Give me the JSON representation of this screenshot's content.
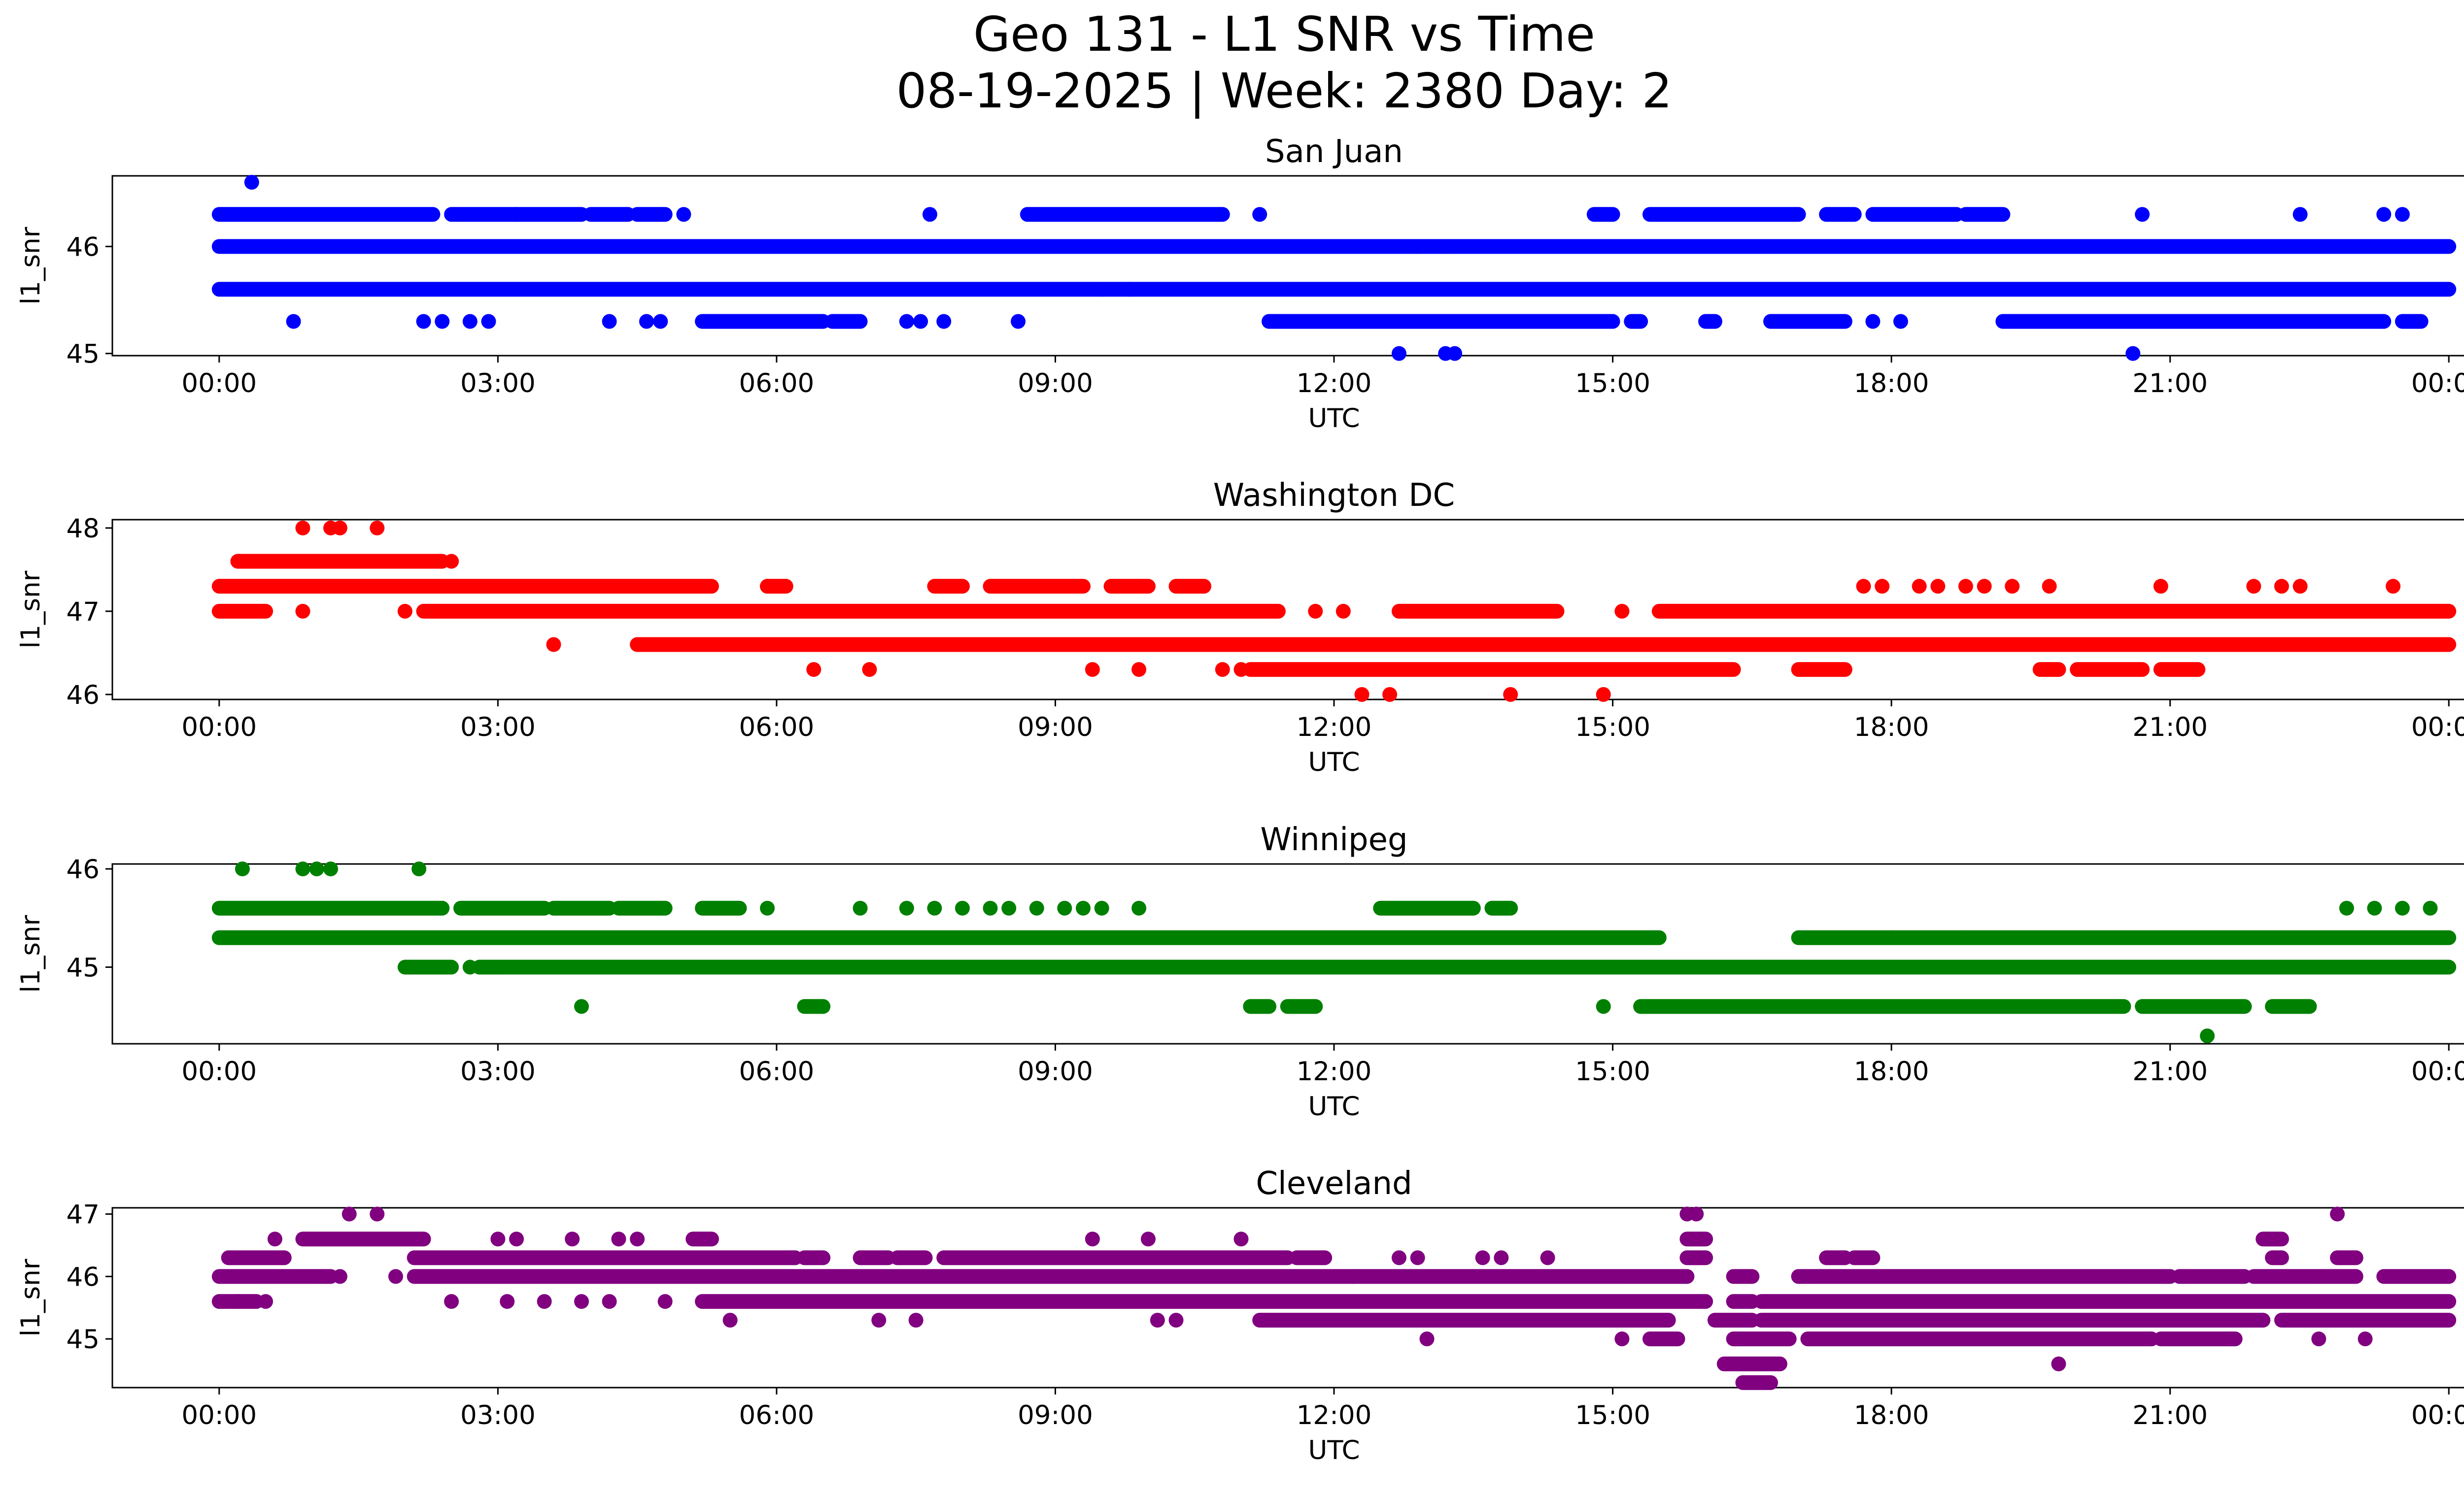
{
  "figure": {
    "title_line1": "Geo 131 - L1 SNR vs Time",
    "title_line2": "08-19-2025 | Week: 2380 Day: 2"
  },
  "chart_data": [
    {
      "type": "scatter",
      "title": "San Juan",
      "xlabel": "UTC",
      "ylabel": "l1_snr",
      "color": "#0000ff",
      "xlim_hours": [
        -1.15,
        25.15
      ],
      "ylim": [
        44.98,
        46.66
      ],
      "yticks": [
        45,
        46
      ],
      "xticks_hours": [
        0,
        3,
        6,
        9,
        12,
        15,
        18,
        21,
        24
      ],
      "xtick_labels": [
        "00:00",
        "03:00",
        "06:00",
        "09:00",
        "12:00",
        "15:00",
        "18:00",
        "21:00",
        "00:00"
      ],
      "bands": [
        {
          "y": 46.0,
          "segments": [
            [
              0.0,
              24.0
            ]
          ]
        },
        {
          "y": 45.6,
          "segments": [
            [
              0.0,
              24.0
            ]
          ]
        },
        {
          "y": 46.3,
          "segments": [
            [
              0.0,
              2.3
            ],
            [
              2.5,
              3.2
            ],
            [
              3.2,
              3.9
            ],
            [
              4.0,
              4.4
            ],
            [
              4.5,
              4.8
            ],
            [
              8.7,
              10.8
            ],
            [
              14.8,
              15.0
            ],
            [
              15.4,
              17.0
            ],
            [
              17.3,
              17.6
            ],
            [
              17.8,
              18.7
            ],
            [
              18.8,
              19.2
            ]
          ]
        },
        {
          "y": 45.3,
          "segments": [
            [
              5.2,
              6.5
            ],
            [
              6.6,
              6.9
            ],
            [
              11.3,
              15.0
            ],
            [
              15.2,
              15.3
            ],
            [
              16.0,
              16.1
            ],
            [
              16.7,
              17.5
            ],
            [
              19.2,
              23.3
            ],
            [
              23.5,
              23.7
            ]
          ]
        }
      ],
      "points": [
        [
          0.35,
          46.6
        ],
        [
          0.8,
          45.3
        ],
        [
          2.2,
          45.3
        ],
        [
          2.4,
          45.3
        ],
        [
          2.7,
          45.3
        ],
        [
          2.9,
          45.3
        ],
        [
          4.2,
          45.3
        ],
        [
          4.6,
          45.3
        ],
        [
          4.75,
          45.3
        ],
        [
          5.0,
          46.3
        ],
        [
          7.4,
          45.3
        ],
        [
          7.55,
          45.3
        ],
        [
          7.65,
          46.3
        ],
        [
          7.8,
          45.3
        ],
        [
          8.6,
          45.3
        ],
        [
          9.5,
          45.6
        ],
        [
          9.8,
          45.6
        ],
        [
          11.2,
          46.3
        ],
        [
          12.7,
          45.0
        ],
        [
          12.9,
          46.0
        ],
        [
          13.2,
          46.0
        ],
        [
          13.2,
          45.0
        ],
        [
          13.3,
          45.0
        ],
        [
          17.8,
          45.3
        ],
        [
          18.1,
          45.3
        ],
        [
          20.6,
          45.0
        ],
        [
          20.7,
          46.3
        ],
        [
          22.4,
          46.3
        ],
        [
          23.3,
          46.3
        ],
        [
          23.5,
          46.3
        ]
      ]
    },
    {
      "type": "scatter",
      "title": "Washington DC",
      "xlabel": "UTC",
      "ylabel": "l1_snr",
      "color": "#ff0000",
      "xlim_hours": [
        -1.15,
        25.15
      ],
      "ylim": [
        45.94,
        48.1
      ],
      "yticks": [
        46,
        47,
        48
      ],
      "xticks_hours": [
        0,
        3,
        6,
        9,
        12,
        15,
        18,
        21,
        24
      ],
      "xtick_labels": [
        "00:00",
        "03:00",
        "06:00",
        "09:00",
        "12:00",
        "15:00",
        "18:00",
        "21:00",
        "00:00"
      ],
      "bands": [
        {
          "y": 47.3,
          "segments": [
            [
              0.0,
              5.3
            ],
            [
              5.9,
              6.1
            ],
            [
              7.7,
              8.0
            ],
            [
              8.3,
              9.3
            ],
            [
              9.6,
              10.0
            ],
            [
              10.3,
              10.6
            ]
          ]
        },
        {
          "y": 47.0,
          "segments": [
            [
              0.0,
              0.5
            ],
            [
              2.2,
              11.4
            ],
            [
              12.7,
              14.4
            ],
            [
              15.5,
              24.0
            ]
          ]
        },
        {
          "y": 46.6,
          "segments": [
            [
              4.5,
              24.0
            ]
          ]
        },
        {
          "y": 47.6,
          "segments": [
            [
              0.2,
              2.4
            ]
          ]
        },
        {
          "y": 46.3,
          "segments": [
            [
              11.1,
              16.3
            ],
            [
              17.0,
              17.5
            ],
            [
              19.6,
              19.8
            ],
            [
              20.0,
              20.7
            ],
            [
              20.9,
              21.3
            ]
          ]
        }
      ],
      "points": [
        [
          0.9,
          48.0
        ],
        [
          1.2,
          48.0
        ],
        [
          1.3,
          48.0
        ],
        [
          1.7,
          48.0
        ],
        [
          0.9,
          47.0
        ],
        [
          2.0,
          47.0
        ],
        [
          2.5,
          47.6
        ],
        [
          3.6,
          46.6
        ],
        [
          5.9,
          47.3
        ],
        [
          6.4,
          46.3
        ],
        [
          7.0,
          46.3
        ],
        [
          9.4,
          46.3
        ],
        [
          9.9,
          46.3
        ],
        [
          10.8,
          46.3
        ],
        [
          11.0,
          46.3
        ],
        [
          11.8,
          47.0
        ],
        [
          12.1,
          47.0
        ],
        [
          12.3,
          46.0
        ],
        [
          12.6,
          46.0
        ],
        [
          13.9,
          46.0
        ],
        [
          14.9,
          46.0
        ],
        [
          15.1,
          47.0
        ],
        [
          17.7,
          47.3
        ],
        [
          17.9,
          47.3
        ],
        [
          18.3,
          47.3
        ],
        [
          18.5,
          47.3
        ],
        [
          18.8,
          47.3
        ],
        [
          19.0,
          47.3
        ],
        [
          19.3,
          47.3
        ],
        [
          19.7,
          47.3
        ],
        [
          20.9,
          47.3
        ],
        [
          21.9,
          47.3
        ],
        [
          22.2,
          47.3
        ],
        [
          22.4,
          47.3
        ],
        [
          23.4,
          47.3
        ]
      ]
    },
    {
      "type": "scatter",
      "title": "Winnipeg",
      "xlabel": "UTC",
      "ylabel": "l1_snr",
      "color": "#008000",
      "xlim_hours": [
        -1.15,
        25.15
      ],
      "ylim": [
        44.22,
        46.05
      ],
      "yticks": [
        45,
        46
      ],
      "xticks_hours": [
        0,
        3,
        6,
        9,
        12,
        15,
        18,
        21,
        24
      ],
      "xtick_labels": [
        "00:00",
        "03:00",
        "06:00",
        "09:00",
        "12:00",
        "15:00",
        "18:00",
        "21:00",
        "00:00"
      ],
      "bands": [
        {
          "y": 45.3,
          "segments": [
            [
              0.0,
              15.5
            ],
            [
              17.0,
              24.0
            ]
          ]
        },
        {
          "y": 45.6,
          "segments": [
            [
              0.0,
              2.4
            ],
            [
              2.6,
              3.5
            ],
            [
              3.6,
              4.2
            ],
            [
              4.3,
              4.8
            ],
            [
              5.2,
              5.6
            ],
            [
              12.5,
              13.5
            ],
            [
              13.7,
              13.9
            ]
          ]
        },
        {
          "y": 45.0,
          "segments": [
            [
              2.0,
              2.5
            ],
            [
              2.8,
              24.0
            ]
          ]
        },
        {
          "y": 44.6,
          "segments": [
            [
              6.3,
              6.5
            ],
            [
              11.1,
              11.3
            ],
            [
              11.5,
              11.8
            ],
            [
              15.3,
              20.5
            ],
            [
              20.7,
              21.8
            ],
            [
              22.1,
              22.5
            ]
          ]
        }
      ],
      "points": [
        [
          0.25,
          46.0
        ],
        [
          0.9,
          46.0
        ],
        [
          1.05,
          46.0
        ],
        [
          1.2,
          46.0
        ],
        [
          2.15,
          46.0
        ],
        [
          2.7,
          45.0
        ],
        [
          3.9,
          44.6
        ],
        [
          5.9,
          45.6
        ],
        [
          6.9,
          45.6
        ],
        [
          7.4,
          45.6
        ],
        [
          7.7,
          45.6
        ],
        [
          8.0,
          45.6
        ],
        [
          8.3,
          45.6
        ],
        [
          8.5,
          45.6
        ],
        [
          8.8,
          45.6
        ],
        [
          9.1,
          45.6
        ],
        [
          9.3,
          45.6
        ],
        [
          9.5,
          45.6
        ],
        [
          9.9,
          45.6
        ],
        [
          14.9,
          44.6
        ],
        [
          18.0,
          45.3
        ],
        [
          18.8,
          45.3
        ],
        [
          21.4,
          44.3
        ],
        [
          22.9,
          45.6
        ],
        [
          23.2,
          45.6
        ],
        [
          23.5,
          45.6
        ],
        [
          23.8,
          45.6
        ]
      ]
    },
    {
      "type": "scatter",
      "title": "Cleveland",
      "xlabel": "UTC",
      "ylabel": "l1_snr",
      "color": "#800080",
      "xlim_hours": [
        -1.15,
        25.15
      ],
      "ylim": [
        44.22,
        47.1
      ],
      "yticks": [
        45,
        46,
        47
      ],
      "xticks_hours": [
        0,
        3,
        6,
        9,
        12,
        15,
        18,
        21,
        24
      ],
      "xtick_labels": [
        "00:00",
        "03:00",
        "06:00",
        "09:00",
        "12:00",
        "15:00",
        "18:00",
        "21:00",
        "00:00"
      ],
      "bands": [
        {
          "y": 46.3,
          "segments": [
            [
              0.1,
              0.7
            ],
            [
              2.1,
              6.2
            ],
            [
              6.3,
              6.5
            ],
            [
              6.9,
              7.2
            ],
            [
              7.3,
              7.6
            ],
            [
              7.8,
              11.5
            ],
            [
              11.6,
              11.9
            ],
            [
              15.8,
              16.0
            ],
            [
              17.3,
              17.5
            ],
            [
              17.6,
              17.8
            ],
            [
              22.1,
              22.2
            ],
            [
              22.8,
              23.0
            ]
          ]
        },
        {
          "y": 46.0,
          "segments": [
            [
              0.0,
              1.2
            ],
            [
              2.1,
              15.8
            ],
            [
              16.3,
              16.5
            ],
            [
              17.0,
              21.0
            ],
            [
              21.1,
              21.8
            ],
            [
              21.9,
              23.0
            ],
            [
              23.3,
              24.0
            ]
          ]
        },
        {
          "y": 45.6,
          "segments": [
            [
              0.0,
              0.4
            ],
            [
              5.2,
              16.0
            ],
            [
              16.3,
              16.5
            ],
            [
              16.6,
              24.0
            ]
          ]
        },
        {
          "y": 46.6,
          "segments": [
            [
              0.9,
              2.2
            ],
            [
              5.1,
              5.3
            ],
            [
              15.8,
              16.0
            ],
            [
              22.0,
              22.2
            ]
          ]
        },
        {
          "y": 45.3,
          "segments": [
            [
              11.2,
              15.6
            ],
            [
              16.1,
              16.5
            ],
            [
              16.6,
              22.0
            ],
            [
              22.2,
              24.0
            ]
          ]
        },
        {
          "y": 45.0,
          "segments": [
            [
              15.4,
              15.7
            ],
            [
              16.3,
              16.9
            ],
            [
              17.1,
              20.8
            ],
            [
              20.9,
              21.7
            ]
          ]
        },
        {
          "y": 44.6,
          "segments": [
            [
              16.2,
              16.8
            ]
          ]
        },
        {
          "y": 44.3,
          "segments": [
            [
              16.4,
              16.7
            ]
          ]
        }
      ],
      "points": [
        [
          0.2,
          45.6
        ],
        [
          0.5,
          45.6
        ],
        [
          0.6,
          46.6
        ],
        [
          1.4,
          47.0
        ],
        [
          1.7,
          47.0
        ],
        [
          1.3,
          46.0
        ],
        [
          1.9,
          46.0
        ],
        [
          2.5,
          45.6
        ],
        [
          3.0,
          46.6
        ],
        [
          3.2,
          46.6
        ],
        [
          3.1,
          45.6
        ],
        [
          3.5,
          45.6
        ],
        [
          3.9,
          45.6
        ],
        [
          4.2,
          45.6
        ],
        [
          3.8,
          46.6
        ],
        [
          4.3,
          46.6
        ],
        [
          4.5,
          46.6
        ],
        [
          4.8,
          45.6
        ],
        [
          5.5,
          45.3
        ],
        [
          7.1,
          45.3
        ],
        [
          7.5,
          45.3
        ],
        [
          9.4,
          46.6
        ],
        [
          10.0,
          46.6
        ],
        [
          10.1,
          45.3
        ],
        [
          10.3,
          45.3
        ],
        [
          11.0,
          46.6
        ],
        [
          12.2,
          46.0
        ],
        [
          13.0,
          45.0
        ],
        [
          12.7,
          46.3
        ],
        [
          12.9,
          46.3
        ],
        [
          13.6,
          46.3
        ],
        [
          13.8,
          46.3
        ],
        [
          14.3,
          46.3
        ],
        [
          15.1,
          45.0
        ],
        [
          15.8,
          47.0
        ],
        [
          15.9,
          47.0
        ],
        [
          19.8,
          44.6
        ],
        [
          22.8,
          47.0
        ],
        [
          22.6,
          45.0
        ],
        [
          23.1,
          45.0
        ]
      ]
    }
  ]
}
